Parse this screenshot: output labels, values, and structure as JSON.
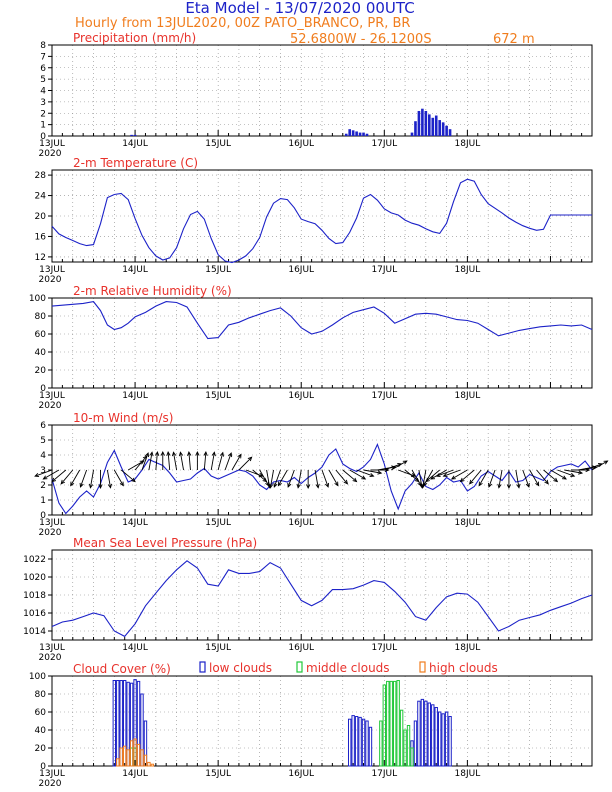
{
  "header": {
    "title": "Eta Model - 13/07/2020 00UTC",
    "subtitle": "Hourly from 13JUL2020, 00Z  PATO_BRANCO, PR, BR",
    "coords": "52.6800W - 26.1200S",
    "altitude": "672  m",
    "colors": {
      "title": "#1c22c8",
      "subtitle": "#f07d1e",
      "panel_title": "#e8322c"
    }
  },
  "x_axis": {
    "day_labels": [
      "13JUL",
      "14JUL",
      "15JUL",
      "16JUL",
      "17JUL",
      "18JUL"
    ],
    "year_label": "2020",
    "hours": [
      0,
      156
    ]
  },
  "chart_data": [
    {
      "type": "bar",
      "title": "Precipitation (mm/h)",
      "ylim": [
        0,
        8
      ],
      "yticks": [
        0,
        1,
        2,
        3,
        4,
        5,
        6,
        7,
        8
      ],
      "grid": true,
      "color": "#1c22c8",
      "x": [
        23,
        24,
        85,
        86,
        87,
        88,
        89,
        90,
        91,
        104,
        105,
        106,
        107,
        108,
        109,
        110,
        111,
        112,
        113,
        114,
        115
      ],
      "values": [
        0.1,
        0.1,
        0.2,
        0.6,
        0.5,
        0.4,
        0.3,
        0.3,
        0.2,
        0.3,
        1.3,
        2.2,
        2.4,
        2.2,
        1.9,
        1.6,
        1.8,
        1.4,
        1.2,
        0.9,
        0.6
      ]
    },
    {
      "type": "line",
      "title": "2-m Temperature (C)",
      "ylim": [
        11,
        29
      ],
      "yticks": [
        12,
        16,
        20,
        24,
        28
      ],
      "grid": true,
      "color": "#1c22c8",
      "x": [
        0,
        2,
        4,
        6,
        8,
        10,
        12,
        14,
        16,
        18,
        20,
        22,
        24,
        26,
        28,
        30,
        32,
        34,
        36,
        38,
        40,
        42,
        44,
        46,
        48,
        50,
        52,
        54,
        56,
        58,
        60,
        62,
        64,
        66,
        68,
        70,
        72,
        74,
        76,
        78,
        80,
        82,
        84,
        86,
        88,
        90,
        92,
        94,
        96,
        98,
        100,
        102,
        104,
        106,
        108,
        110,
        112,
        114,
        116,
        118,
        120,
        122,
        124,
        126,
        128,
        130,
        132,
        134,
        136,
        138,
        140,
        142,
        144,
        146,
        148,
        150,
        152,
        154,
        156
      ],
      "values": [
        18,
        16.5,
        15.8,
        15.2,
        14.6,
        14.2,
        14.4,
        18.5,
        23.6,
        24.2,
        24.4,
        23.2,
        19.5,
        16.2,
        13.8,
        12.2,
        11.4,
        11.8,
        13.8,
        17.5,
        20.3,
        20.9,
        19.4,
        15.6,
        12.4,
        11.2,
        10.9,
        11.4,
        12.2,
        13.6,
        15.8,
        19.8,
        22.5,
        23.4,
        23.2,
        21.6,
        19.4,
        18.9,
        18.5,
        17.2,
        15.6,
        14.6,
        14.8,
        16.8,
        19.6,
        23.5,
        24.2,
        23.1,
        21.4,
        20.6,
        20.2,
        19.2,
        18.6,
        18.2,
        17.5,
        16.9,
        16.6,
        18.6,
        22.8,
        26.5,
        27.2,
        26.8,
        24.2,
        22.4,
        21.5,
        20.6,
        19.6,
        18.8,
        18.1,
        17.6,
        17.2,
        17.4,
        20.2,
        20.2,
        20.2,
        20.2,
        20.2,
        20.2,
        20.2
      ]
    },
    {
      "type": "line",
      "title": "2-m Relative Humidity (%)",
      "ylim": [
        0,
        100
      ],
      "yticks": [
        0,
        20,
        40,
        60,
        80,
        100
      ],
      "grid": true,
      "color": "#1c22c8",
      "x": [
        0,
        3,
        6,
        9,
        12,
        14,
        16,
        18,
        20,
        22,
        24,
        27,
        30,
        33,
        36,
        39,
        42,
        45,
        48,
        51,
        54,
        57,
        60,
        63,
        66,
        69,
        72,
        75,
        78,
        81,
        84,
        87,
        90,
        93,
        96,
        99,
        102,
        105,
        108,
        111,
        114,
        117,
        120,
        123,
        126,
        129,
        132,
        135,
        138,
        141,
        144,
        147,
        150,
        153,
        156
      ],
      "values": [
        91,
        92,
        93,
        94,
        96,
        86,
        70,
        65,
        67,
        72,
        79,
        84,
        91,
        96,
        95,
        90,
        72,
        55,
        56,
        70,
        73,
        78,
        82,
        86,
        89,
        80,
        67,
        60,
        63,
        70,
        78,
        84,
        87,
        90,
        83,
        72,
        77,
        82,
        83,
        82,
        79,
        76,
        75,
        72,
        65,
        58,
        61,
        64,
        66,
        68,
        69,
        70,
        69,
        70,
        65
      ]
    },
    {
      "type": "line+barbs",
      "title": "10-m Wind (m/s)",
      "ylim": [
        0,
        6
      ],
      "yticks": [
        0,
        1,
        2,
        3,
        4,
        5,
        6
      ],
      "grid": true,
      "color": "#1c22c8",
      "arrow_color": "#000000",
      "x": [
        0,
        2,
        4,
        6,
        8,
        10,
        12,
        14,
        16,
        18,
        20,
        22,
        24,
        26,
        28,
        30,
        32,
        34,
        36,
        38,
        40,
        42,
        44,
        46,
        48,
        50,
        52,
        54,
        56,
        58,
        60,
        62,
        64,
        66,
        68,
        70,
        72,
        74,
        76,
        78,
        80,
        82,
        84,
        86,
        88,
        90,
        92,
        94,
        96,
        98,
        100,
        102,
        104,
        106,
        108,
        110,
        112,
        114,
        116,
        118,
        120,
        122,
        124,
        126,
        128,
        130,
        132,
        134,
        136,
        138,
        140,
        142,
        144,
        146,
        148,
        150,
        152,
        154,
        156
      ],
      "values": [
        2.4,
        0.8,
        0.1,
        0.6,
        1.2,
        1.6,
        1.2,
        2.1,
        3.5,
        4.3,
        3.2,
        2.2,
        2.4,
        3.0,
        3.7,
        3.5,
        3.3,
        2.8,
        2.2,
        2.3,
        2.4,
        2.8,
        3.1,
        2.6,
        2.4,
        2.6,
        2.8,
        3.0,
        2.9,
        2.6,
        2.0,
        1.7,
        2.2,
        2.3,
        2.2,
        2.5,
        2.1,
        2.5,
        2.8,
        3.2,
        4.0,
        4.4,
        3.4,
        3.1,
        2.9,
        3.2,
        3.7,
        4.7,
        3.4,
        1.6,
        0.4,
        1.6,
        2.1,
        2.8,
        1.9,
        1.7,
        2.0,
        2.5,
        2.2,
        2.3,
        1.6,
        1.9,
        2.6,
        2.9,
        2.6,
        2.3,
        2.9,
        2.2,
        2.3,
        2.7,
        2.5,
        2.3,
        2.9,
        3.2,
        3.3,
        3.4,
        3.2,
        3.6,
        3.0
      ],
      "direction_deg": [
        -160,
        -150,
        -140,
        -130,
        -120,
        -110,
        -100,
        -90,
        -80,
        -60,
        -40,
        30,
        50,
        70,
        80,
        85,
        90,
        95,
        100,
        100,
        95,
        90,
        85,
        80,
        75,
        70,
        60,
        45,
        -20,
        -40,
        -60,
        -80,
        -100,
        -110,
        -120,
        -110,
        -100,
        -90,
        -80,
        -70,
        -60,
        -50,
        -40,
        -30,
        -20,
        -10,
        0,
        10,
        20,
        30,
        -20,
        -40,
        -60,
        -80,
        -100,
        -120,
        -140,
        -150,
        -160,
        -160,
        -150,
        -140,
        -130,
        -120,
        -110,
        -100,
        -90,
        -80,
        -70,
        -60,
        -50,
        -40,
        -30,
        -20,
        -10,
        0,
        10,
        20,
        30
      ]
    },
    {
      "type": "line",
      "title": "Mean Sea Level Pressure (hPa)",
      "ylim": [
        1013,
        1023
      ],
      "yticks": [
        1014,
        1016,
        1018,
        1020,
        1022
      ],
      "grid": true,
      "color": "#1c22c8",
      "x": [
        0,
        3,
        6,
        9,
        12,
        15,
        18,
        21,
        24,
        27,
        30,
        33,
        36,
        39,
        42,
        45,
        48,
        51,
        54,
        57,
        60,
        63,
        66,
        69,
        72,
        75,
        78,
        81,
        84,
        87,
        90,
        93,
        96,
        99,
        102,
        105,
        108,
        111,
        114,
        117,
        120,
        123,
        126,
        129,
        132,
        135,
        138,
        141,
        144,
        147,
        150,
        153,
        156
      ],
      "values": [
        1014.5,
        1015,
        1015.2,
        1015.6,
        1016,
        1015.7,
        1014,
        1013.4,
        1014.8,
        1016.8,
        1018.2,
        1019.6,
        1020.8,
        1021.8,
        1021,
        1019.2,
        1019,
        1020.8,
        1020.4,
        1020.4,
        1020.6,
        1021.6,
        1021,
        1019.2,
        1017.4,
        1016.8,
        1017.4,
        1018.6,
        1018.6,
        1018.7,
        1019.1,
        1019.6,
        1019.4,
        1018.4,
        1017.2,
        1015.6,
        1015.2,
        1016.6,
        1017.8,
        1018.2,
        1018.1,
        1017.2,
        1015.6,
        1014,
        1014.5,
        1015.2,
        1015.5,
        1015.8,
        1016.3,
        1016.7,
        1017.1,
        1017.6,
        1018
      ]
    },
    {
      "type": "bar",
      "title": "Cloud Cover (%)",
      "legend_placement": "top",
      "ylim": [
        0,
        100
      ],
      "yticks": [
        0,
        20,
        40,
        60,
        80,
        100
      ],
      "grid": true,
      "series": [
        {
          "name": "low clouds",
          "color": "#1c22c8",
          "x": [
            18,
            19,
            20,
            21,
            22,
            23,
            24,
            25,
            26,
            27,
            86,
            87,
            88,
            89,
            90,
            91,
            92,
            104,
            105,
            106,
            107,
            108,
            109,
            110,
            111,
            112,
            113,
            114,
            115
          ],
          "values": [
            95,
            95,
            95,
            95,
            93,
            92,
            96,
            94,
            80,
            50,
            52,
            56,
            55,
            54,
            52,
            50,
            43,
            28,
            50,
            72,
            74,
            72,
            70,
            68,
            65,
            60,
            58,
            60,
            55
          ]
        },
        {
          "name": "middle clouds",
          "color": "#22c83a",
          "x": [
            23,
            24,
            95,
            96,
            97,
            98,
            99,
            100,
            101,
            102,
            103,
            104
          ],
          "values": [
            20,
            20,
            50,
            90,
            94,
            94,
            94,
            95,
            62,
            40,
            45,
            20
          ]
        },
        {
          "name": "high clouds",
          "color": "#f07d1e",
          "x": [
            19,
            20,
            21,
            22,
            23,
            24,
            25,
            26,
            27,
            28,
            29
          ],
          "values": [
            8,
            20,
            22,
            18,
            28,
            30,
            24,
            18,
            12,
            4,
            2
          ]
        }
      ]
    }
  ]
}
